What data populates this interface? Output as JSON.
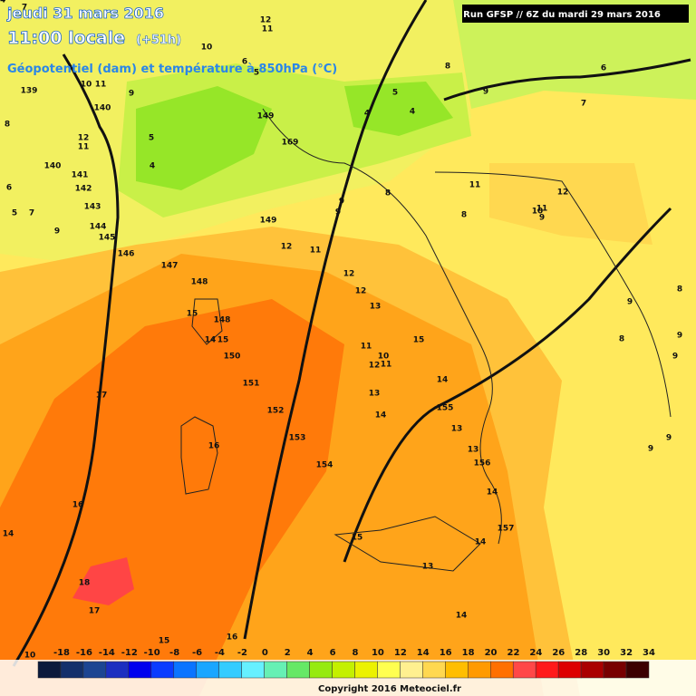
{
  "header": {
    "date": "jeudi 31 mars 2016",
    "time": "11:00 locale",
    "lead": "(+51h)",
    "subtitle": "Géopotentiel (dam) et température à 850hPa (°C)",
    "run": "Run GFSP // 6Z du mardi 29 mars 2016"
  },
  "map": {
    "labels": [
      7,
      139,
      10,
      11,
      9,
      140,
      8,
      12,
      11,
      140,
      5,
      4,
      141,
      142,
      6,
      5,
      7,
      143,
      9,
      144,
      145,
      146,
      147,
      148,
      149,
      169,
      149,
      12,
      11,
      12,
      12,
      13,
      15,
      148,
      14,
      15,
      150,
      11,
      10,
      12,
      11,
      15,
      151,
      17,
      13,
      14,
      152,
      155,
      13,
      14,
      16,
      153,
      13,
      156,
      154,
      14,
      16,
      14,
      15,
      157,
      14,
      13,
      18,
      17,
      14,
      16,
      15,
      12,
      11,
      10,
      6,
      5,
      6,
      7,
      9,
      8,
      8,
      4,
      4,
      5,
      8,
      11,
      12,
      11,
      10,
      9,
      8,
      9,
      8,
      9,
      9,
      9,
      9,
      9,
      9,
      10,
      14
    ]
  },
  "colorbar": {
    "labels": [
      -18,
      -16,
      -14,
      -12,
      -10,
      -8,
      -6,
      -4,
      -2,
      0,
      2,
      4,
      6,
      8,
      10,
      12,
      14,
      16,
      18,
      20,
      22,
      24,
      26,
      28,
      30,
      32,
      34
    ],
    "colors": [
      "#0b1a3c",
      "#13306b",
      "#1c4592",
      "#1c2fc0",
      "#0000ee",
      "#0a3cff",
      "#0a74ff",
      "#1aa6ff",
      "#33ccff",
      "#66f0ff",
      "#66f0b4",
      "#66e866",
      "#96ea10",
      "#c4f000",
      "#ecf200",
      "#ffff50",
      "#fff090",
      "#ffd850",
      "#ffbe00",
      "#ff9a00",
      "#ff7000",
      "#ff4848",
      "#ff1a1a",
      "#dd0000",
      "#aa0000",
      "#780000",
      "#3c0000"
    ]
  },
  "footer": {
    "copyright": "Copyright 2016 Meteociel.fr"
  }
}
